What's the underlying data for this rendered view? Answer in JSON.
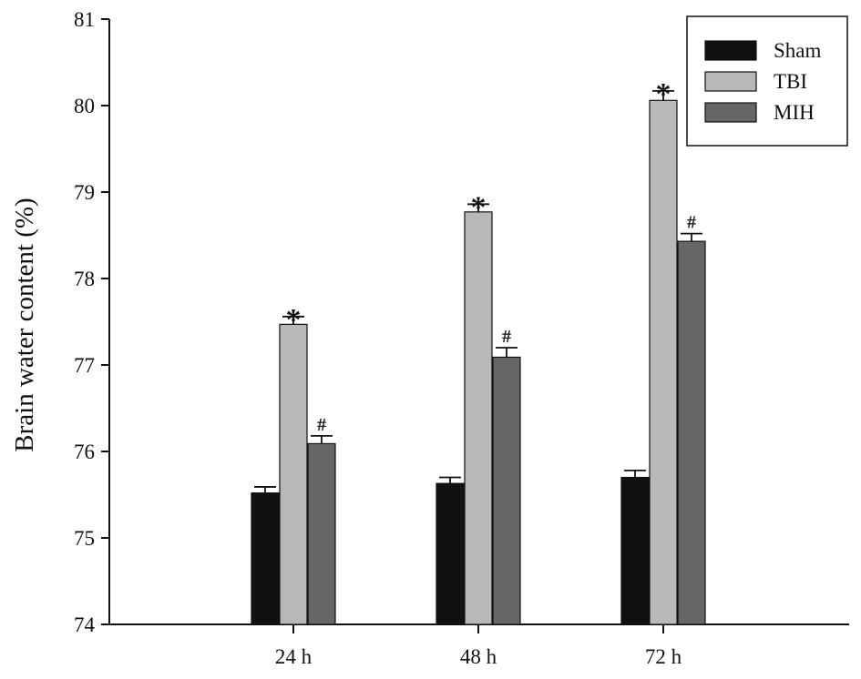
{
  "chart_data": {
    "type": "bar",
    "title": "",
    "xlabel": "",
    "ylabel": "Brain water content (%)",
    "ylim": [
      74,
      81
    ],
    "yticks": [
      74,
      75,
      76,
      77,
      78,
      79,
      80,
      81
    ],
    "categories": [
      "24 h",
      "48 h",
      "72 h"
    ],
    "series": [
      {
        "name": "Sham",
        "color": "#111111",
        "values": [
          75.52,
          75.63,
          75.7
        ],
        "errors": [
          0.07,
          0.07,
          0.08
        ],
        "marks": [
          "",
          "",
          ""
        ]
      },
      {
        "name": "TBI",
        "color": "#b8b8b8",
        "values": [
          77.47,
          78.77,
          80.06
        ],
        "errors": [
          0.09,
          0.09,
          0.11
        ],
        "marks": [
          "*",
          "*",
          "*"
        ]
      },
      {
        "name": "MIH",
        "color": "#666666",
        "values": [
          76.09,
          77.09,
          78.43
        ],
        "errors": [
          0.09,
          0.11,
          0.09
        ],
        "marks": [
          "#",
          "#",
          "#"
        ]
      }
    ],
    "legend_position": "top-right",
    "grid": false
  }
}
